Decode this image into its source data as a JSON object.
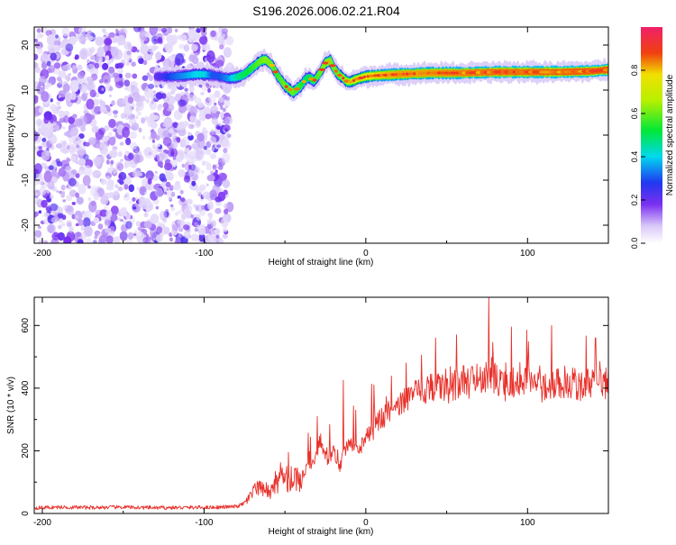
{
  "title": "S196.2026.006.02.21.R04",
  "chart_data": [
    {
      "type": "heatmap",
      "xlabel": "Height of straight line (km)",
      "ylabel": "Frequency (Hz)",
      "xlim": [
        -205,
        150
      ],
      "ylim": [
        -24,
        24
      ],
      "xticks": [
        "-200",
        "-100",
        "0",
        "100"
      ],
      "yticks": [
        "20",
        "10",
        "0",
        "-10",
        "-20"
      ],
      "colorbar": {
        "label": "Normalized spectral amplitude",
        "range": [
          0,
          1
        ],
        "ticks": [
          "0.0",
          "0.2",
          "0.4",
          "0.6",
          "0.8"
        ]
      },
      "noise_region_x": [
        -205,
        -84
      ],
      "ridge": {
        "x": [
          -130,
          -120,
          -112,
          -105,
          -100,
          -95,
          -90,
          -85,
          -80,
          -75,
          -70,
          -65,
          -62,
          -58,
          -55,
          -50,
          -45,
          -40,
          -37,
          -35,
          -32,
          -28,
          -25,
          -22,
          -20,
          -17,
          -15,
          -12,
          -10,
          -7,
          -5,
          -2,
          0,
          5,
          10,
          20,
          40,
          60,
          80,
          100,
          120,
          140,
          150
        ],
        "y": [
          13.0,
          13.0,
          13.2,
          13.5,
          13.5,
          13.3,
          13.0,
          12.6,
          12.8,
          13.5,
          15.0,
          16.5,
          16.8,
          15.5,
          13.5,
          11.0,
          9.5,
          11.0,
          12.5,
          12.8,
          12.0,
          14.0,
          16.0,
          16.5,
          15.0,
          13.5,
          13.0,
          12.0,
          11.8,
          12.2,
          12.5,
          12.8,
          13.0,
          13.2,
          13.3,
          13.5,
          13.8,
          13.8,
          14.0,
          14.0,
          14.0,
          14.2,
          14.5
        ],
        "amplitude": [
          0.2,
          0.3,
          0.35,
          0.4,
          0.42,
          0.3,
          0.3,
          0.35,
          0.45,
          0.5,
          0.55,
          0.6,
          0.62,
          0.6,
          0.55,
          0.6,
          0.6,
          0.55,
          0.5,
          0.5,
          0.55,
          0.6,
          0.62,
          0.62,
          0.6,
          0.6,
          0.62,
          0.65,
          0.65,
          0.68,
          0.7,
          0.72,
          0.75,
          0.78,
          0.8,
          0.82,
          0.82,
          0.84,
          0.85,
          0.85,
          0.86,
          0.86,
          0.86
        ]
      }
    },
    {
      "type": "line",
      "xlabel": "Height of straight line (km)",
      "ylabel": "SNR (10 * v/v)",
      "xlim": [
        -205,
        150
      ],
      "ylim": [
        0,
        690
      ],
      "xticks": [
        "-200",
        "-100",
        "0",
        "100"
      ],
      "yticks": [
        "0",
        "200",
        "400",
        "600"
      ],
      "color": "#e8302a",
      "x": [
        -205,
        -190,
        -170,
        -150,
        -130,
        -110,
        -90,
        -80,
        -76,
        -72,
        -68,
        -64,
        -60,
        -56,
        -52,
        -48,
        -44,
        -40,
        -36,
        -32,
        -28,
        -24,
        -20,
        -16,
        -12,
        -8,
        -4,
        0,
        4,
        8,
        12,
        16,
        20,
        24,
        28,
        32,
        36,
        40,
        44,
        48,
        52,
        56,
        60,
        64,
        68,
        72,
        76,
        80,
        84,
        88,
        92,
        96,
        100,
        104,
        108,
        112,
        116,
        120,
        124,
        128,
        132,
        136,
        140,
        144,
        150
      ],
      "y": [
        18,
        20,
        19,
        20,
        18,
        19,
        20,
        22,
        30,
        50,
        75,
        80,
        60,
        90,
        110,
        100,
        115,
        100,
        170,
        150,
        240,
        170,
        200,
        150,
        210,
        220,
        200,
        245,
        260,
        300,
        310,
        335,
        350,
        360,
        385,
        380,
        395,
        405,
        410,
        400,
        390,
        415,
        425,
        410,
        440,
        420,
        460,
        430,
        410,
        400,
        420,
        410,
        440,
        410,
        400,
        415,
        410,
        420,
        405,
        420,
        400,
        425,
        410,
        420,
        410
      ],
      "spikes": [
        {
          "x": -48,
          "y": 195
        },
        {
          "x": -30,
          "y": 310
        },
        {
          "x": -14,
          "y": 425
        },
        {
          "x": 25,
          "y": 480
        },
        {
          "x": 43,
          "y": 560
        },
        {
          "x": 56,
          "y": 570
        },
        {
          "x": 76,
          "y": 690
        },
        {
          "x": 90,
          "y": 595
        },
        {
          "x": 115,
          "y": 600
        },
        {
          "x": 142,
          "y": 560
        }
      ]
    }
  ]
}
